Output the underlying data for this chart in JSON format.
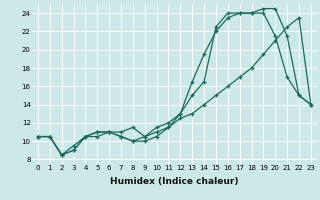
{
  "xlabel": "Humidex (Indice chaleur)",
  "xlim": [
    -0.5,
    23.5
  ],
  "ylim": [
    7.5,
    25.0
  ],
  "yticks": [
    8,
    10,
    12,
    14,
    16,
    18,
    20,
    22,
    24
  ],
  "xticks": [
    0,
    1,
    2,
    3,
    4,
    5,
    6,
    7,
    8,
    9,
    10,
    11,
    12,
    13,
    14,
    15,
    16,
    17,
    18,
    19,
    20,
    21,
    22,
    23
  ],
  "bg_color": "#cce8e8",
  "line_color": "#1a6b5a",
  "series1_x": [
    0,
    1,
    2,
    3,
    4,
    5,
    6,
    7,
    8,
    9,
    10,
    11,
    12,
    13,
    14,
    15,
    16,
    17,
    18,
    19,
    20,
    21,
    22,
    23
  ],
  "series1_y": [
    10.5,
    10.5,
    8.5,
    9.0,
    10.5,
    11.0,
    11.0,
    10.5,
    10.0,
    10.0,
    10.5,
    11.5,
    13.0,
    16.5,
    19.5,
    22.0,
    23.5,
    24.0,
    24.0,
    24.5,
    24.5,
    21.5,
    15.0,
    14.0
  ],
  "series2_x": [
    0,
    1,
    2,
    3,
    4,
    5,
    6,
    7,
    8,
    9,
    10,
    11,
    12,
    13,
    14,
    15,
    16,
    17,
    18,
    19,
    20,
    21,
    22,
    23
  ],
  "series2_y": [
    10.5,
    10.5,
    8.5,
    9.0,
    10.5,
    11.0,
    11.0,
    11.0,
    11.5,
    10.5,
    11.5,
    12.0,
    13.0,
    15.0,
    16.5,
    22.5,
    24.0,
    24.0,
    24.0,
    24.0,
    21.5,
    17.0,
    15.0,
    14.0
  ],
  "series3_x": [
    0,
    1,
    2,
    3,
    4,
    5,
    6,
    7,
    8,
    9,
    10,
    11,
    12,
    13,
    14,
    15,
    16,
    17,
    18,
    19,
    20,
    21,
    22,
    23
  ],
  "series3_y": [
    10.5,
    10.5,
    8.5,
    9.5,
    10.5,
    10.5,
    11.0,
    10.5,
    10.0,
    10.5,
    11.0,
    11.5,
    12.5,
    13.0,
    14.0,
    15.0,
    16.0,
    17.0,
    18.0,
    19.5,
    21.0,
    22.5,
    23.5,
    14.0
  ],
  "tick_fontsize": 5.0,
  "xlabel_fontsize": 6.5,
  "grid_color": "#ffffff",
  "grid_lw": 0.7
}
